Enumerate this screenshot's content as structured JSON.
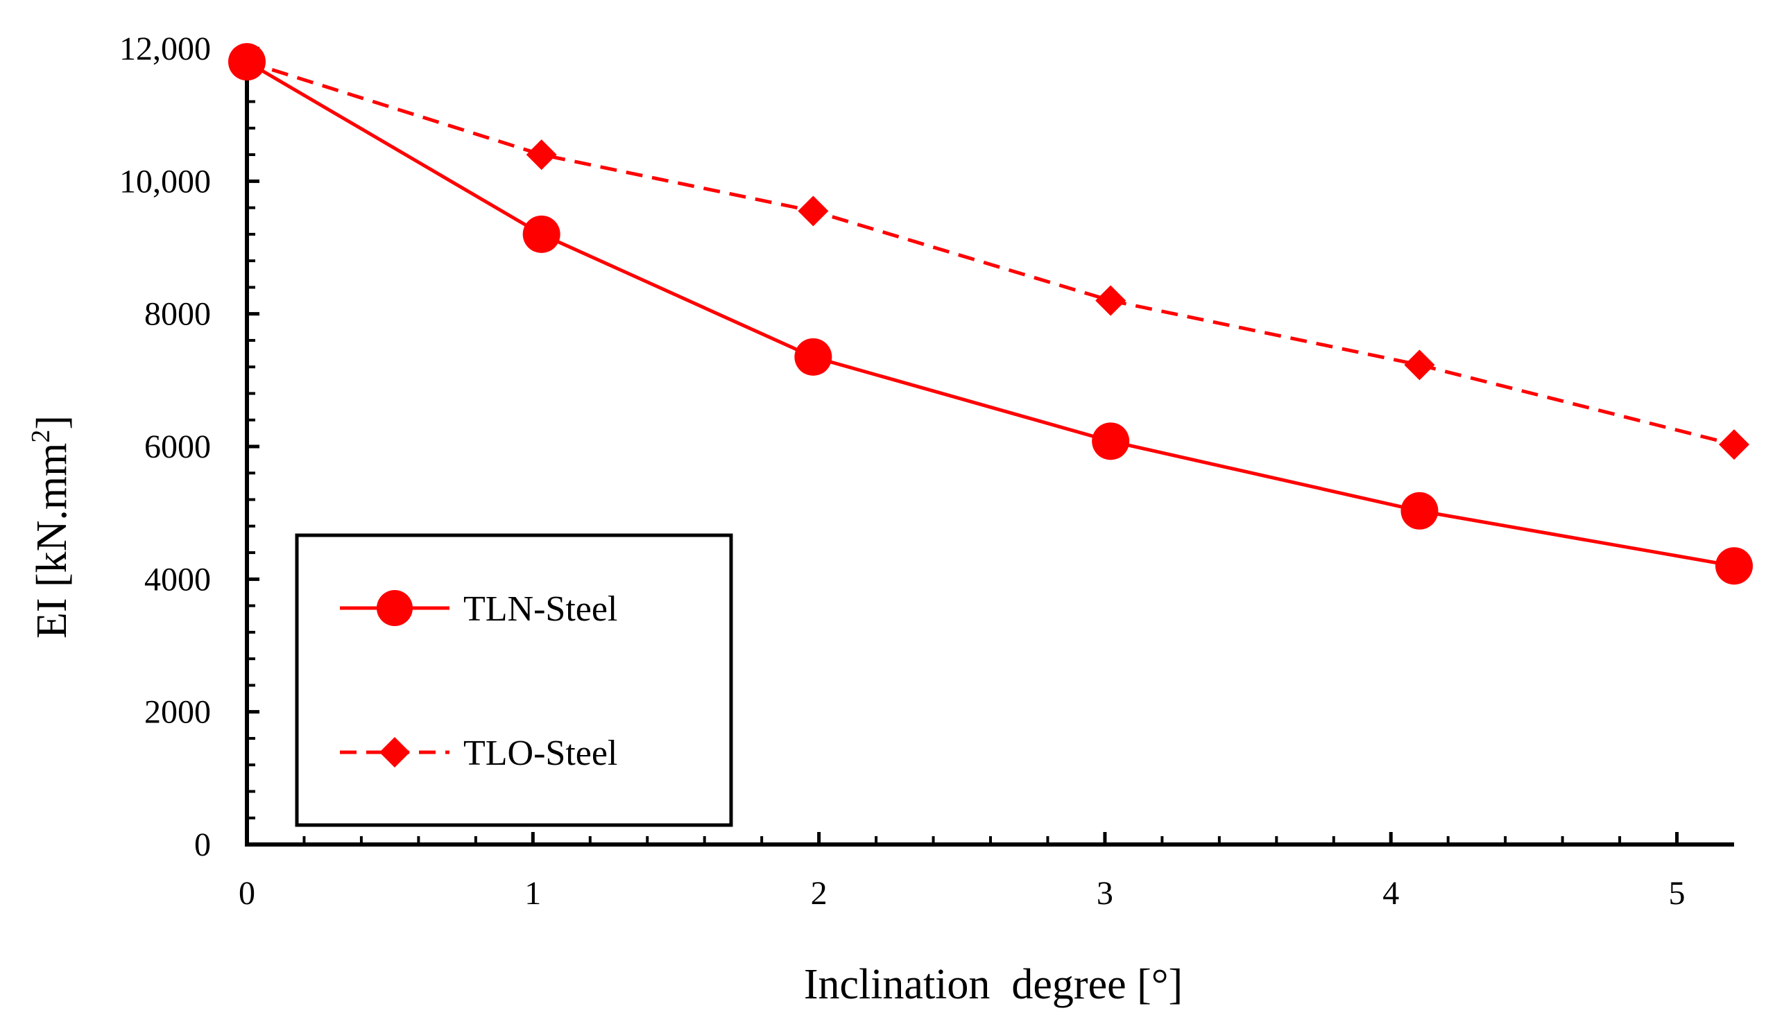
{
  "chart_data": {
    "type": "line",
    "title": "",
    "xlabel": "Inclination  degree [°]",
    "ylabel": "EI [kN.mm",
    "ylabel_superscript": "2",
    "ylabel_suffix": "]",
    "xlim": [
      0,
      5.2
    ],
    "ylim": [
      0,
      12000
    ],
    "x_ticks": [
      0,
      1,
      2,
      3,
      4,
      5
    ],
    "x_tick_labels": [
      "0",
      "1",
      "2",
      "3",
      "4",
      "5"
    ],
    "y_ticks": [
      0,
      2000,
      4000,
      6000,
      8000,
      10000,
      12000
    ],
    "y_tick_labels": [
      "0",
      "2000",
      "4000",
      "6000",
      "8000",
      "10,000",
      "12,000"
    ],
    "grid": false,
    "legend_position": "bottom-left",
    "series": [
      {
        "name": "TLN-Steel",
        "line_style": "solid",
        "marker": "circle",
        "color": "#ff0000",
        "x": [
          0,
          1.03,
          1.98,
          3.02,
          4.1,
          5.2
        ],
        "values": [
          11800,
          9200,
          7350,
          6080,
          5030,
          4200
        ]
      },
      {
        "name": "TLO-Steel",
        "line_style": "dashed",
        "marker": "diamond",
        "color": "#ff0000",
        "x": [
          0,
          1.03,
          1.98,
          3.02,
          4.1,
          5.2
        ],
        "values": [
          11800,
          10400,
          9550,
          8200,
          7230,
          6030
        ]
      }
    ]
  }
}
